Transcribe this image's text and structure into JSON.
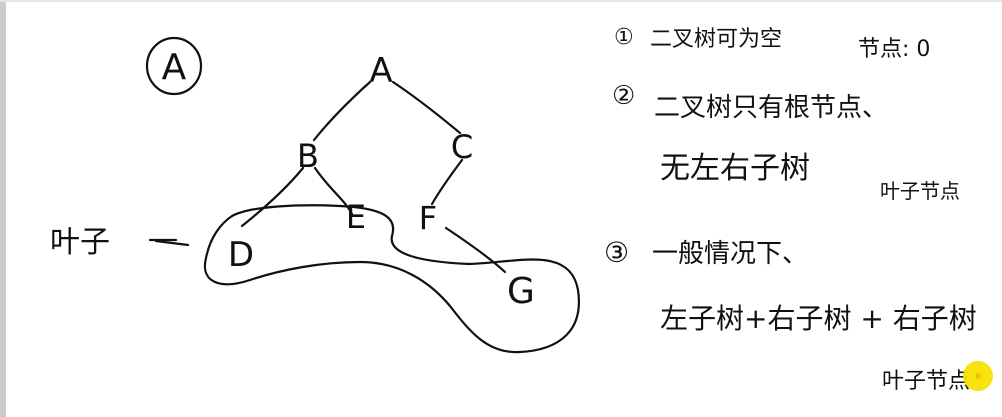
{
  "diagram": {
    "title": "A",
    "nodes": {
      "a": "A",
      "b": "B",
      "c": "C",
      "d": "D",
      "e": "E",
      "f": "F",
      "g": "G"
    },
    "leaf_label": "叶子"
  },
  "notes": {
    "n1_marker": "①",
    "n1_text": "二叉树可为空",
    "n1_answer": "节点: 0",
    "n2_marker": "②",
    "n2_line1": "二叉树只有根节点、",
    "n2_line2": "无左右子树",
    "n2_aside": "叶子节点",
    "n3_marker": "③",
    "n3_line1": "一般情况下、",
    "n3_line2": "左子树+右子树 + 右子树",
    "n3_line3": "叶子节点"
  },
  "colors": {
    "ink": "#111111",
    "cursor": "#f7e200",
    "background": "#ffffff"
  }
}
